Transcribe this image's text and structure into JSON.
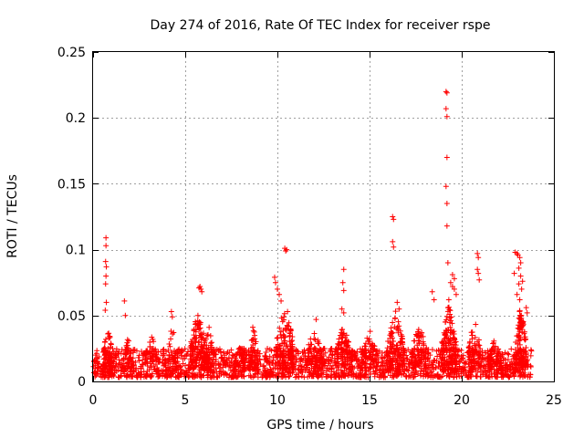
{
  "chart_data": {
    "type": "scatter",
    "title": "Day 274 of 2016, Rate Of TEC Index for receiver rspe",
    "xlabel": "GPS time / hours",
    "ylabel": "ROTI / TECUs",
    "xlim": [
      0,
      25
    ],
    "ylim": [
      0,
      0.25
    ],
    "xticks": [
      0,
      5,
      10,
      15,
      20,
      25
    ],
    "yticks": [
      0,
      0.05,
      0.1,
      0.15,
      0.2,
      0.25
    ],
    "xtick_labels": [
      "0",
      "5",
      "10",
      "15",
      "20",
      "25"
    ],
    "ytick_labels": [
      "0",
      "0.05",
      "0.1",
      "0.15",
      "0.2",
      "0.25"
    ],
    "grid": true,
    "marker": "+",
    "series": [
      {
        "name": "ROTI",
        "color": "#ff0000",
        "background_band": {
          "x_min": 0,
          "x_max": 23.8,
          "y_min": 0.003,
          "y_max": 0.025,
          "approx_point_count": 1800
        },
        "clusters": [
          {
            "x_center": 0.8,
            "width": 0.5,
            "y_peak": 0.045,
            "count": 60
          },
          {
            "x_center": 1.9,
            "width": 0.4,
            "y_peak": 0.035,
            "count": 30
          },
          {
            "x_center": 3.2,
            "width": 0.8,
            "y_peak": 0.035,
            "count": 40
          },
          {
            "x_center": 4.3,
            "width": 0.5,
            "y_peak": 0.045,
            "count": 30
          },
          {
            "x_center": 5.7,
            "width": 0.9,
            "y_peak": 0.055,
            "count": 120
          },
          {
            "x_center": 6.3,
            "width": 0.6,
            "y_peak": 0.045,
            "count": 60
          },
          {
            "x_center": 8.0,
            "width": 0.6,
            "y_peak": 0.03,
            "count": 50
          },
          {
            "x_center": 8.7,
            "width": 0.5,
            "y_peak": 0.045,
            "count": 50
          },
          {
            "x_center": 10.4,
            "width": 1.0,
            "y_peak": 0.06,
            "count": 130
          },
          {
            "x_center": 12.0,
            "width": 1.0,
            "y_peak": 0.04,
            "count": 80
          },
          {
            "x_center": 13.6,
            "width": 1.0,
            "y_peak": 0.045,
            "count": 100
          },
          {
            "x_center": 15.0,
            "width": 0.8,
            "y_peak": 0.04,
            "count": 70
          },
          {
            "x_center": 16.4,
            "width": 1.0,
            "y_peak": 0.055,
            "count": 120
          },
          {
            "x_center": 17.7,
            "width": 0.9,
            "y_peak": 0.045,
            "count": 80
          },
          {
            "x_center": 19.3,
            "width": 0.8,
            "y_peak": 0.06,
            "count": 140
          },
          {
            "x_center": 20.7,
            "width": 0.7,
            "y_peak": 0.05,
            "count": 60
          },
          {
            "x_center": 21.8,
            "width": 0.7,
            "y_peak": 0.035,
            "count": 60
          },
          {
            "x_center": 23.2,
            "width": 0.6,
            "y_peak": 0.06,
            "count": 120
          }
        ],
        "outliers": [
          [
            0.7,
            0.109
          ],
          [
            0.7,
            0.103
          ],
          [
            0.68,
            0.091
          ],
          [
            0.72,
            0.087
          ],
          [
            0.7,
            0.08
          ],
          [
            0.68,
            0.074
          ],
          [
            0.72,
            0.06
          ],
          [
            0.66,
            0.054
          ],
          [
            1.7,
            0.061
          ],
          [
            1.75,
            0.05
          ],
          [
            4.25,
            0.053
          ],
          [
            4.3,
            0.049
          ],
          [
            5.8,
            0.072
          ],
          [
            5.85,
            0.07
          ],
          [
            5.9,
            0.068
          ],
          [
            5.75,
            0.071
          ],
          [
            9.85,
            0.079
          ],
          [
            9.9,
            0.075
          ],
          [
            10.0,
            0.07
          ],
          [
            10.1,
            0.066
          ],
          [
            10.2,
            0.061
          ],
          [
            10.4,
            0.101
          ],
          [
            10.45,
            0.099
          ],
          [
            10.5,
            0.1
          ],
          [
            10.55,
            0.053
          ],
          [
            12.1,
            0.047
          ],
          [
            13.6,
            0.085
          ],
          [
            13.55,
            0.075
          ],
          [
            13.6,
            0.069
          ],
          [
            13.5,
            0.055
          ],
          [
            13.6,
            0.052
          ],
          [
            16.25,
            0.125
          ],
          [
            16.3,
            0.123
          ],
          [
            16.25,
            0.106
          ],
          [
            16.3,
            0.102
          ],
          [
            16.5,
            0.06
          ],
          [
            16.6,
            0.055
          ],
          [
            18.4,
            0.068
          ],
          [
            18.5,
            0.062
          ],
          [
            19.15,
            0.22
          ],
          [
            19.2,
            0.219
          ],
          [
            19.15,
            0.207
          ],
          [
            19.2,
            0.201
          ],
          [
            19.2,
            0.17
          ],
          [
            19.15,
            0.148
          ],
          [
            19.2,
            0.135
          ],
          [
            19.2,
            0.118
          ],
          [
            19.25,
            0.09
          ],
          [
            19.5,
            0.081
          ],
          [
            19.6,
            0.078
          ],
          [
            19.4,
            0.075
          ],
          [
            19.5,
            0.072
          ],
          [
            19.6,
            0.07
          ],
          [
            19.7,
            0.066
          ],
          [
            19.3,
            0.062
          ],
          [
            20.85,
            0.097
          ],
          [
            20.9,
            0.094
          ],
          [
            20.85,
            0.085
          ],
          [
            20.9,
            0.082
          ],
          [
            20.95,
            0.077
          ],
          [
            22.9,
            0.098
          ],
          [
            23.0,
            0.097
          ],
          [
            23.05,
            0.096
          ],
          [
            23.15,
            0.094
          ],
          [
            23.2,
            0.09
          ],
          [
            23.1,
            0.086
          ],
          [
            22.85,
            0.082
          ],
          [
            23.2,
            0.08
          ],
          [
            23.3,
            0.076
          ],
          [
            23.1,
            0.074
          ],
          [
            23.25,
            0.07
          ],
          [
            23.0,
            0.066
          ],
          [
            23.15,
            0.062
          ],
          [
            23.5,
            0.056
          ],
          [
            23.55,
            0.052
          ]
        ]
      }
    ]
  }
}
